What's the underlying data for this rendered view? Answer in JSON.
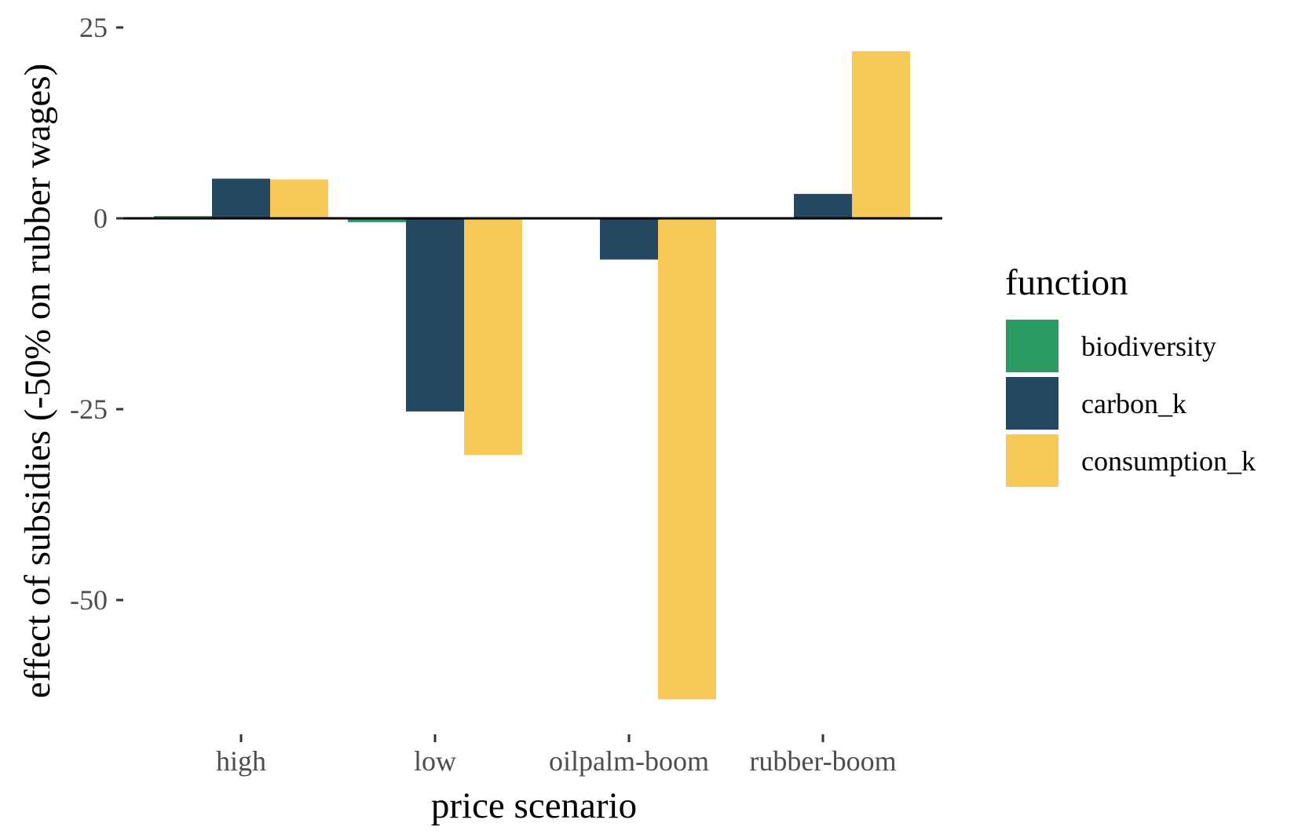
{
  "chart_data": {
    "type": "bar",
    "categories": [
      "high",
      "low",
      "oilpalm-boom",
      "rubber-boom"
    ],
    "series": [
      {
        "name": "biodiversity",
        "values": [
          0.3,
          -0.5,
          0.0,
          -0.2
        ]
      },
      {
        "name": "carbon_k",
        "values": [
          5.2,
          -25.3,
          -5.4,
          3.2
        ]
      },
      {
        "name": "consumption_k",
        "values": [
          5.1,
          -31.0,
          -63.0,
          21.9
        ]
      }
    ],
    "title": "",
    "xlabel": "price scenario",
    "ylabel": "effect of subsidies (-50% on rubber wages)",
    "ylim": [
      -66.4,
      25
    ],
    "yticks": [
      25,
      0,
      -25,
      -50
    ],
    "ytick_labels": [
      "25",
      "0",
      "-25",
      "-50"
    ],
    "zero_line": true,
    "grid": false,
    "legend": {
      "title": "function",
      "placement": "right",
      "entries": [
        "biodiversity",
        "carbon_k",
        "consumption_k"
      ]
    },
    "colors": {
      "biodiversity": "#2a9b63",
      "carbon_k": "#254862",
      "consumption_k": "#f7c956"
    }
  }
}
